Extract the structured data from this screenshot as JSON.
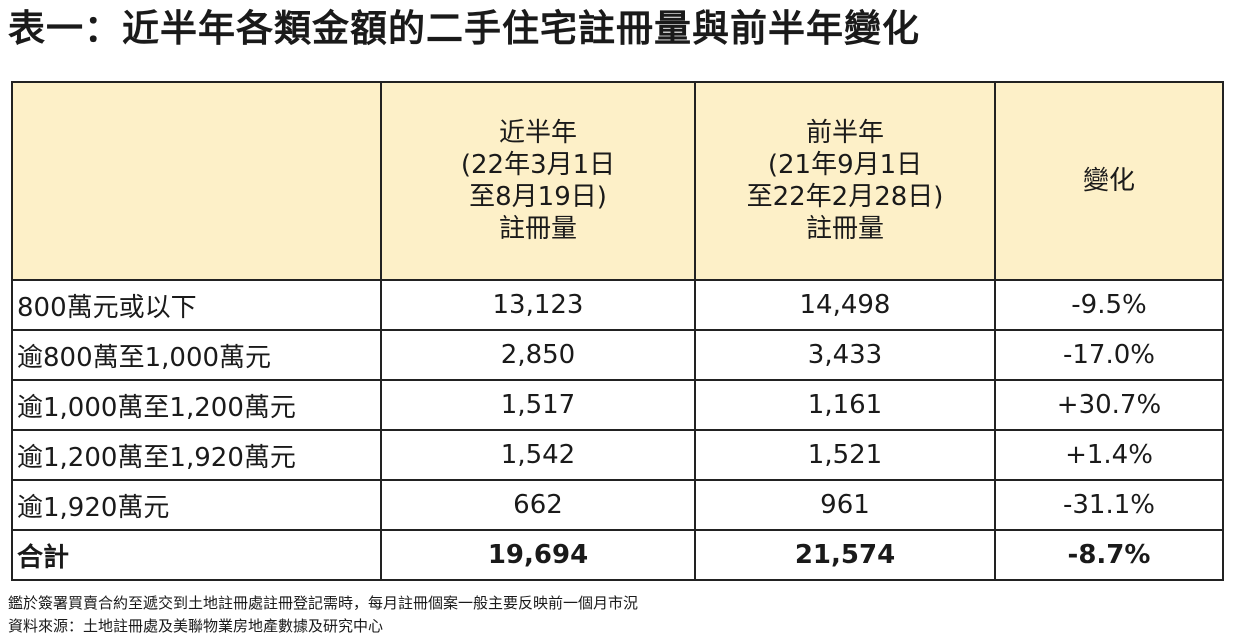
{
  "title": "表一：近半年各類金額的二手住宅註冊量與前半年變化",
  "table": {
    "headers": {
      "category": "",
      "recent": [
        "近半年",
        "(22年3月1日",
        "至8月19日)",
        "註冊量"
      ],
      "previous": [
        "前半年",
        "(21年9月1日",
        "至22年2月28日)",
        "註冊量"
      ],
      "change": "變化"
    },
    "rows": [
      {
        "label": "800萬元或以下",
        "recent": "13,123",
        "previous": "14,498",
        "change": "-9.5%"
      },
      {
        "label": "逾800萬至1,000萬元",
        "recent": "2,850",
        "previous": "3,433",
        "change": "-17.0%"
      },
      {
        "label": "逾1,000萬至1,200萬元",
        "recent": "1,517",
        "previous": "1,161",
        "change": "+30.7%"
      },
      {
        "label": "逾1,200萬至1,920萬元",
        "recent": "1,542",
        "previous": "1,521",
        "change": "+1.4%"
      },
      {
        "label": "逾1,920萬元",
        "recent": "662",
        "previous": "961",
        "change": "-31.1%"
      }
    ],
    "total": {
      "label": "合計",
      "recent": "19,694",
      "previous": "21,574",
      "change": "-8.7%"
    }
  },
  "notes": [
    "鑑於簽署買賣合約至遞交到土地註冊處註冊登記需時，每月註冊個案一般主要反映前一個月市況",
    "資料來源：土地註冊處及美聯物業房地產數據及研究中心"
  ],
  "colors": {
    "header_background": "#fdf0c8",
    "border": "#222222",
    "text": "#1a1a1a"
  }
}
